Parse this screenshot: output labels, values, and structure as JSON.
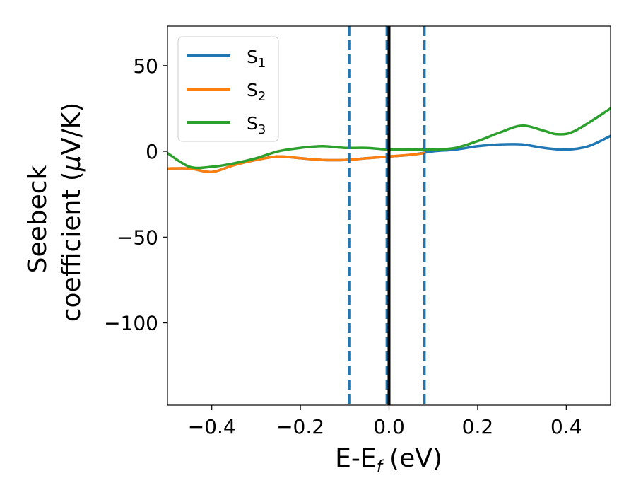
{
  "chart_data": {
    "type": "line",
    "xlabel": "E-E",
    "xlabel_subscript": "f",
    "xlabel_unit": "(eV)",
    "ylabel_line1": "Seebeck",
    "ylabel_line2": "coefficient  (",
    "ylabel_mu": "μ",
    "ylabel_unit_tail": "V/K)",
    "xlim": [
      -0.5,
      0.5
    ],
    "ylim": [
      -148,
      73
    ],
    "xticks": [
      -0.4,
      -0.2,
      0.0,
      0.2,
      0.4
    ],
    "xtick_labels": [
      "−0.4",
      "−0.2",
      "0.0",
      "0.2",
      "0.4"
    ],
    "yticks": [
      50,
      0,
      -50,
      -100
    ],
    "ytick_labels": [
      "50",
      "0",
      "−50",
      "−100"
    ],
    "legend_position": "top-left",
    "vlines": [
      {
        "x": -0.09,
        "style": "dashed",
        "color": "#1f77b4"
      },
      {
        "x": -0.005,
        "style": "dashed",
        "color": "#1f77b4"
      },
      {
        "x": 0.08,
        "style": "dashed",
        "color": "#1f77b4"
      },
      {
        "x": 0.0,
        "style": "solid",
        "color": "#000000"
      }
    ],
    "series": [
      {
        "name": "S1",
        "label_main": "S",
        "label_sub": "1",
        "color": "#1f77b4",
        "points": [
          [
            -0.5,
            -10
          ],
          [
            -0.45,
            -10
          ],
          [
            -0.4,
            -12
          ],
          [
            -0.35,
            -8
          ],
          [
            -0.3,
            -5
          ],
          [
            -0.25,
            -3
          ],
          [
            -0.2,
            -4
          ],
          [
            -0.15,
            -5
          ],
          [
            -0.1,
            -5
          ],
          [
            -0.05,
            -4
          ],
          [
            0.0,
            -3
          ],
          [
            0.05,
            -2
          ],
          [
            0.1,
            0
          ],
          [
            0.15,
            1
          ],
          [
            0.2,
            3
          ],
          [
            0.25,
            4
          ],
          [
            0.3,
            4
          ],
          [
            0.35,
            2
          ],
          [
            0.4,
            1
          ],
          [
            0.45,
            3
          ],
          [
            0.5,
            9
          ]
        ]
      },
      {
        "name": "S2",
        "label_main": "S",
        "label_sub": "2",
        "color": "#ff7f0e",
        "points": [
          [
            -0.5,
            -10
          ],
          [
            -0.45,
            -10
          ],
          [
            -0.4,
            -12
          ],
          [
            -0.35,
            -8
          ],
          [
            -0.3,
            -5
          ],
          [
            -0.25,
            -3
          ],
          [
            -0.2,
            -4
          ],
          [
            -0.15,
            -5
          ],
          [
            -0.1,
            -5
          ],
          [
            -0.05,
            -4
          ],
          [
            0.0,
            -3
          ],
          [
            0.05,
            -2
          ],
          [
            0.08,
            -1
          ]
        ]
      },
      {
        "name": "S3",
        "label_main": "S",
        "label_sub": "3",
        "color": "#2ca02c",
        "points": [
          [
            -0.5,
            -1
          ],
          [
            -0.45,
            -9
          ],
          [
            -0.4,
            -9
          ],
          [
            -0.35,
            -7
          ],
          [
            -0.3,
            -4
          ],
          [
            -0.25,
            0
          ],
          [
            -0.2,
            2
          ],
          [
            -0.15,
            3
          ],
          [
            -0.1,
            2
          ],
          [
            -0.05,
            2
          ],
          [
            0.0,
            1
          ],
          [
            0.05,
            1
          ],
          [
            0.1,
            1
          ],
          [
            0.15,
            2
          ],
          [
            0.2,
            6
          ],
          [
            0.25,
            11
          ],
          [
            0.3,
            15
          ],
          [
            0.35,
            12
          ],
          [
            0.38,
            10
          ],
          [
            0.42,
            12
          ],
          [
            0.5,
            25
          ]
        ]
      }
    ]
  }
}
